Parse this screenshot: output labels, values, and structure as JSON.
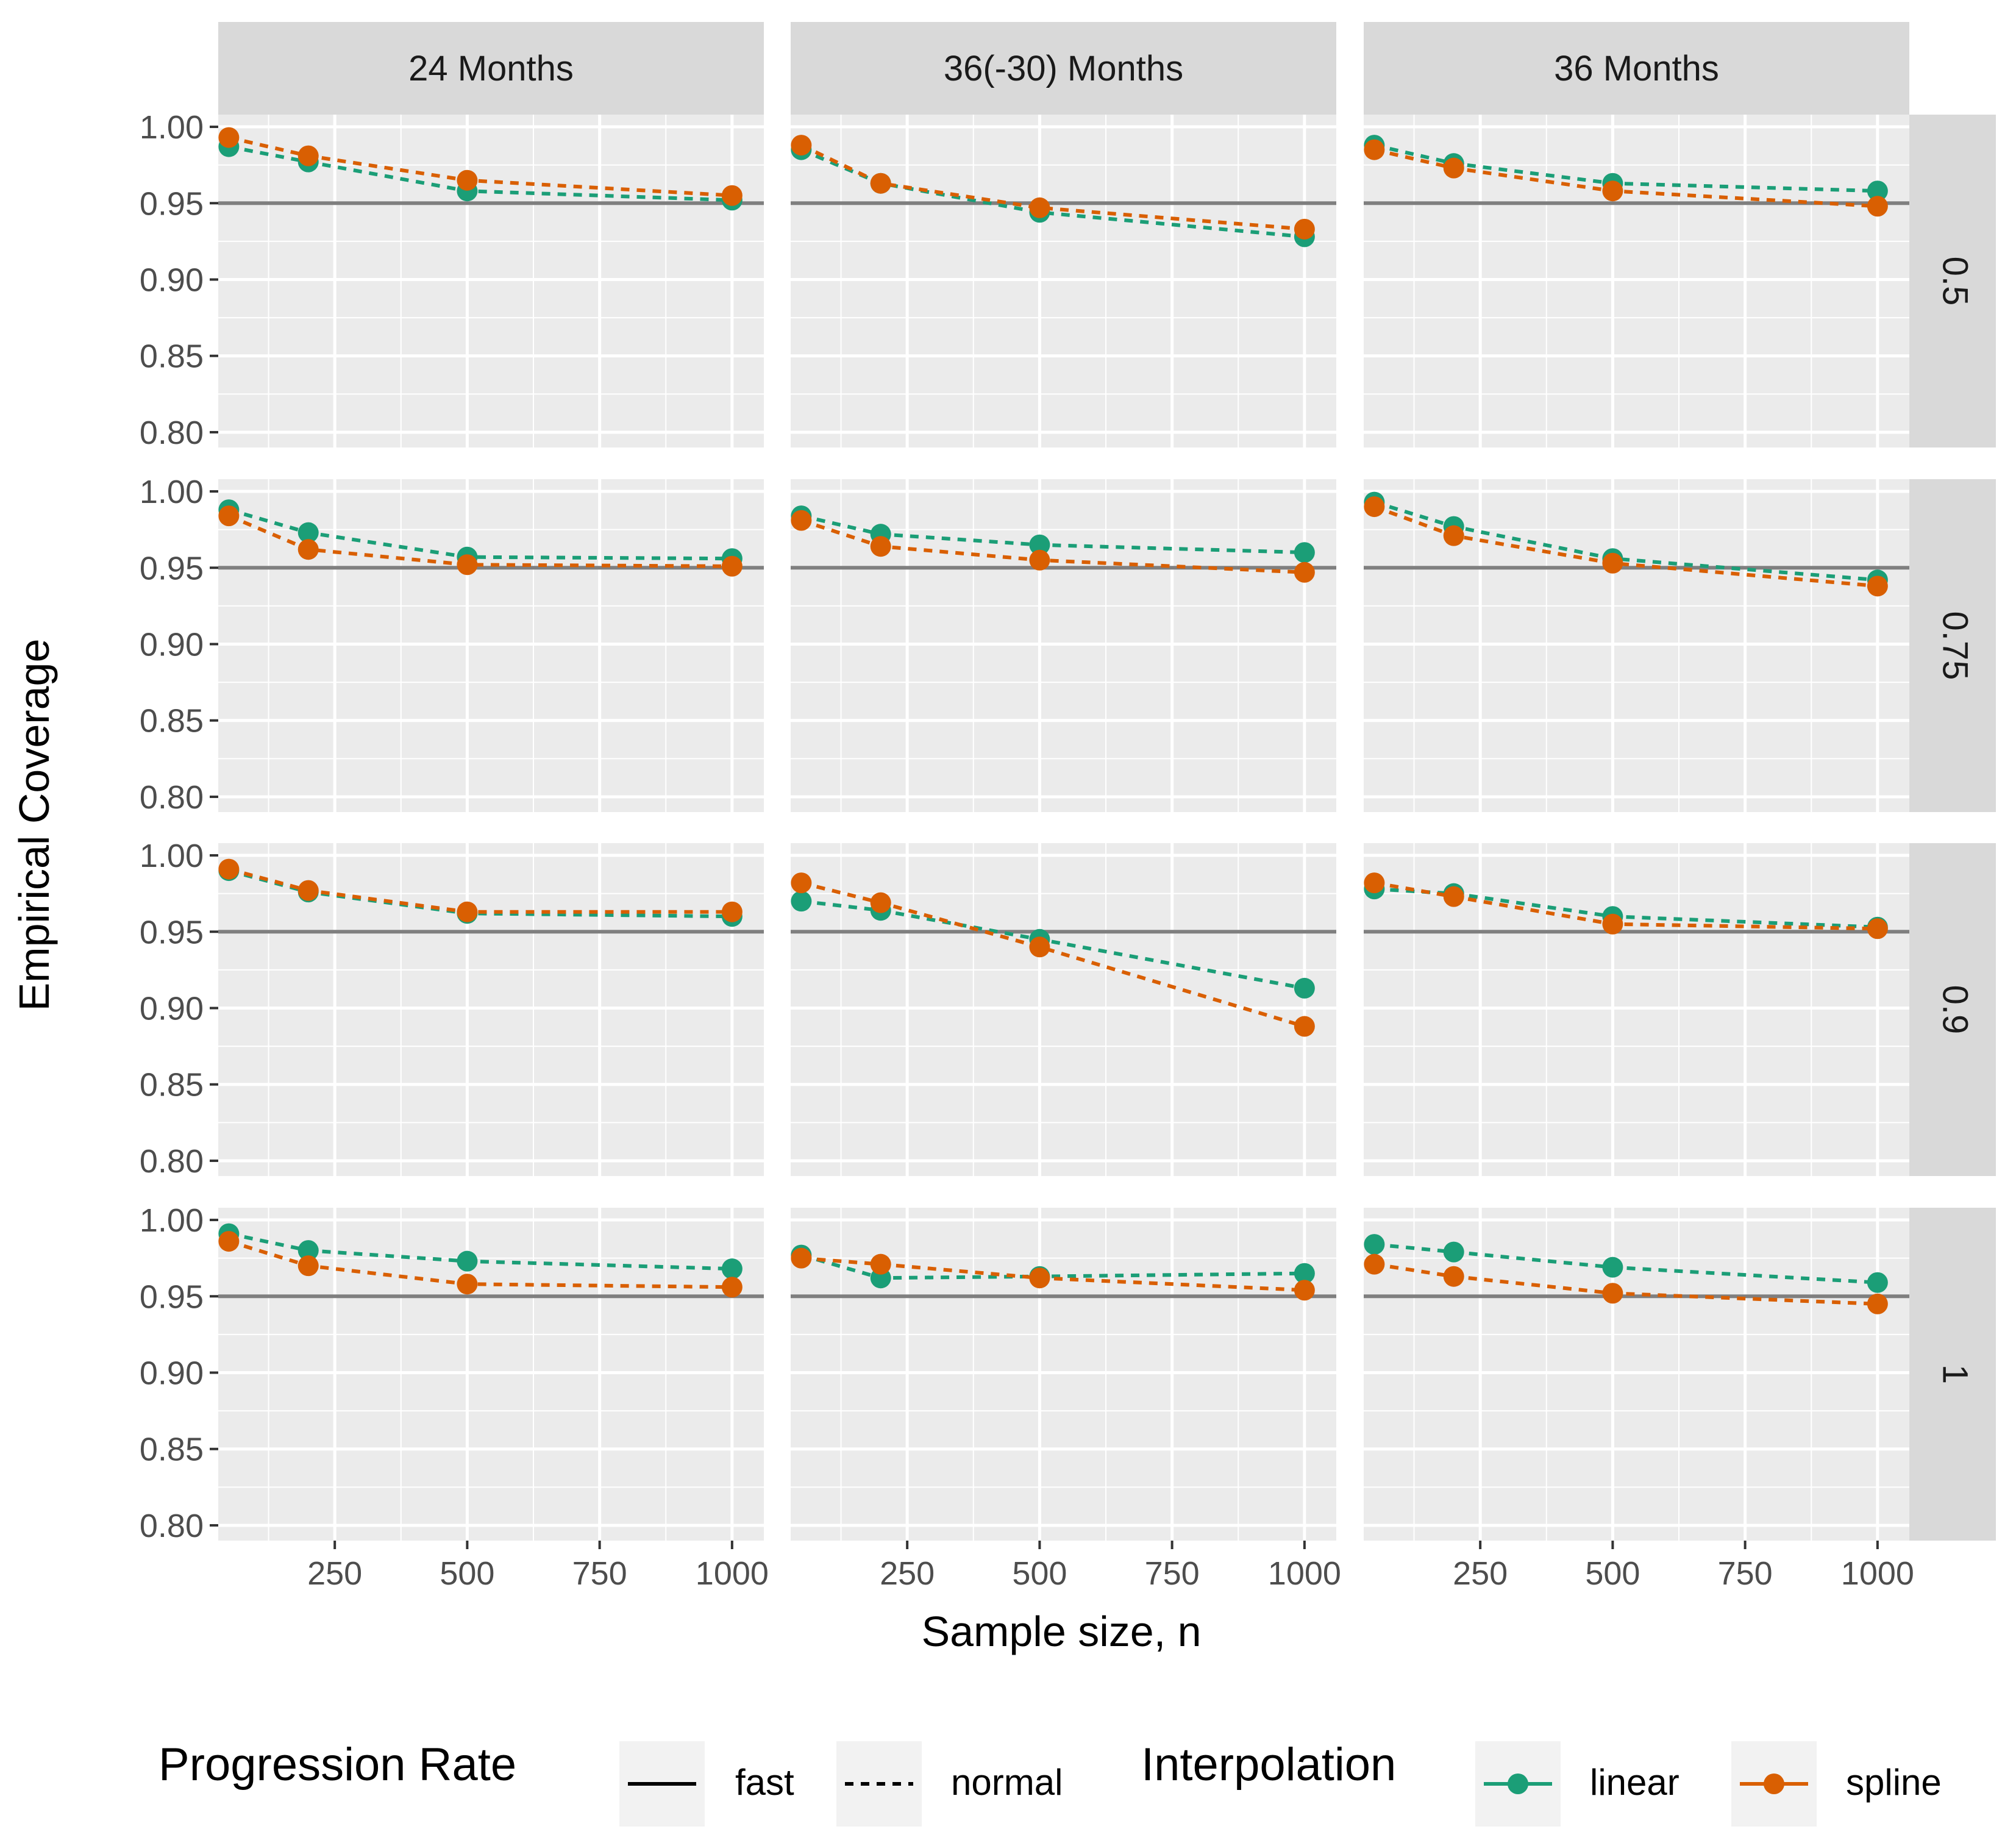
{
  "chart_data": {
    "type": "line",
    "title": "",
    "xlabel": "Sample size, n",
    "ylabel": "Empirical Coverage",
    "xlim": [
      30,
      1060
    ],
    "ylim": [
      0.79,
      1.008
    ],
    "x_ticks": [
      250,
      500,
      750,
      1000
    ],
    "x_tick_labels": [
      "250",
      "500",
      "750",
      "1000"
    ],
    "y_ticks": [
      0.8,
      0.85,
      0.9,
      0.95,
      1.0
    ],
    "y_tick_labels": [
      "0.80",
      "0.85",
      "0.90",
      "0.95",
      "1.00"
    ],
    "reference_line": 0.95,
    "grid": true,
    "x": [
      50,
      200,
      500,
      1000
    ],
    "columns": [
      "24 Months",
      "36(-30) Months",
      "36 Months"
    ],
    "rows": [
      "0.5",
      "0.75",
      "0.9",
      "1"
    ],
    "colors": {
      "linear": "#1b9e77",
      "spline": "#d95f02",
      "reference": "#7f7f7f",
      "panel_bg": "#ebebeb",
      "strip_bg": "#d9d9d9",
      "grid": "#ffffff"
    },
    "panels": [
      {
        "row": 0,
        "col": 0,
        "series": [
          {
            "name": "linear",
            "values": [
              0.987,
              0.977,
              0.958,
              0.952
            ]
          },
          {
            "name": "spline",
            "values": [
              0.993,
              0.981,
              0.965,
              0.955
            ]
          }
        ]
      },
      {
        "row": 0,
        "col": 1,
        "series": [
          {
            "name": "linear",
            "values": [
              0.985,
              0.963,
              0.944,
              0.928
            ]
          },
          {
            "name": "spline",
            "values": [
              0.988,
              0.963,
              0.947,
              0.933
            ]
          }
        ]
      },
      {
        "row": 0,
        "col": 2,
        "series": [
          {
            "name": "linear",
            "values": [
              0.988,
              0.976,
              0.963,
              0.958
            ]
          },
          {
            "name": "spline",
            "values": [
              0.985,
              0.973,
              0.958,
              0.948
            ]
          }
        ]
      },
      {
        "row": 1,
        "col": 0,
        "series": [
          {
            "name": "linear",
            "values": [
              0.988,
              0.973,
              0.957,
              0.956
            ]
          },
          {
            "name": "spline",
            "values": [
              0.984,
              0.962,
              0.952,
              0.951
            ]
          }
        ]
      },
      {
        "row": 1,
        "col": 1,
        "series": [
          {
            "name": "linear",
            "values": [
              0.984,
              0.972,
              0.965,
              0.96
            ]
          },
          {
            "name": "spline",
            "values": [
              0.981,
              0.964,
              0.955,
              0.947
            ]
          }
        ]
      },
      {
        "row": 1,
        "col": 2,
        "series": [
          {
            "name": "linear",
            "values": [
              0.993,
              0.977,
              0.956,
              0.942
            ]
          },
          {
            "name": "spline",
            "values": [
              0.99,
              0.971,
              0.953,
              0.938
            ]
          }
        ]
      },
      {
        "row": 2,
        "col": 0,
        "series": [
          {
            "name": "linear",
            "values": [
              0.99,
              0.976,
              0.962,
              0.96
            ]
          },
          {
            "name": "spline",
            "values": [
              0.991,
              0.977,
              0.963,
              0.963
            ]
          }
        ]
      },
      {
        "row": 2,
        "col": 1,
        "series": [
          {
            "name": "linear",
            "values": [
              0.97,
              0.964,
              0.945,
              0.913
            ]
          },
          {
            "name": "spline",
            "values": [
              0.982,
              0.969,
              0.94,
              0.888
            ]
          }
        ]
      },
      {
        "row": 2,
        "col": 2,
        "series": [
          {
            "name": "linear",
            "values": [
              0.978,
              0.975,
              0.96,
              0.953
            ]
          },
          {
            "name": "spline",
            "values": [
              0.982,
              0.973,
              0.955,
              0.952
            ]
          }
        ]
      },
      {
        "row": 3,
        "col": 0,
        "series": [
          {
            "name": "linear",
            "values": [
              0.991,
              0.98,
              0.973,
              0.968
            ]
          },
          {
            "name": "spline",
            "values": [
              0.986,
              0.97,
              0.958,
              0.956
            ]
          }
        ]
      },
      {
        "row": 3,
        "col": 1,
        "series": [
          {
            "name": "linear",
            "values": [
              0.977,
              0.962,
              0.963,
              0.965
            ]
          },
          {
            "name": "spline",
            "values": [
              0.975,
              0.971,
              0.962,
              0.954
            ]
          }
        ]
      },
      {
        "row": 3,
        "col": 2,
        "series": [
          {
            "name": "linear",
            "values": [
              0.984,
              0.979,
              0.969,
              0.959
            ]
          },
          {
            "name": "spline",
            "values": [
              0.971,
              0.963,
              0.952,
              0.945
            ]
          }
        ]
      }
    ],
    "legend": {
      "position": "bottom",
      "linetype_title": "Progression Rate",
      "linetype_items": [
        {
          "label": "fast",
          "style": "solid"
        },
        {
          "label": "normal",
          "style": "dashed"
        }
      ],
      "color_title": "Interpolation",
      "color_items": [
        {
          "label": "linear",
          "color": "#1b9e77"
        },
        {
          "label": "spline",
          "color": "#d95f02"
        }
      ]
    }
  }
}
